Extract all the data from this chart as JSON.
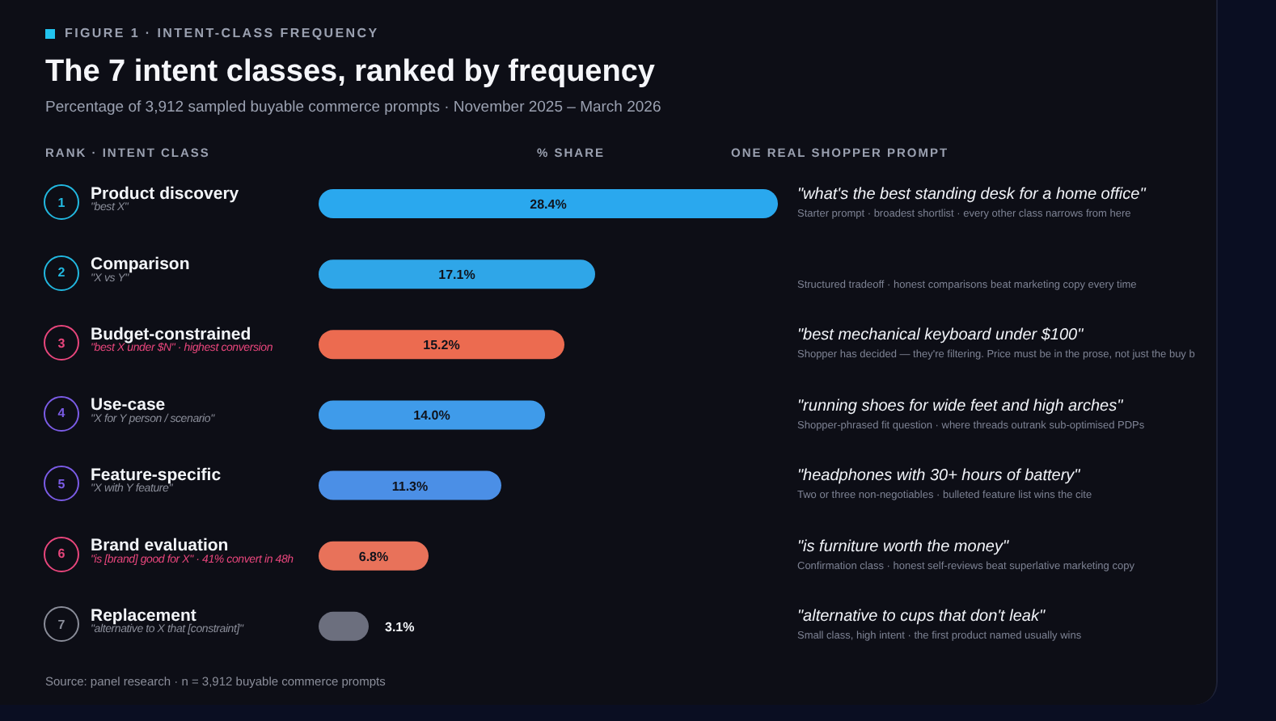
{
  "chart_data": {
    "type": "bar",
    "orientation": "horizontal",
    "title": "The 7 intent classes, ranked by frequency",
    "subtitle": "Percentage of 3,912 sampled buyable commerce prompts · November 2025 – March 2026",
    "categories": [
      "Product discovery",
      "Comparison",
      "Budget-constrained",
      "Use-case",
      "Feature-specific",
      "Brand evaluation",
      "Replacement"
    ],
    "values": [
      28.4,
      17.1,
      15.2,
      14.0,
      11.3,
      6.8,
      3.1
    ],
    "value_labels": [
      "28.4%",
      "17.1%",
      "15.2%",
      "14.0%",
      "11.3%",
      "6.8%",
      "3.1%"
    ],
    "colors": [
      "#2aa8ee",
      "#2fa6e8",
      "#ec6b50",
      "#3f9bea",
      "#4b8fe6",
      "#e8725a",
      "#6c6f7e"
    ],
    "annotations": [
      "FIGURE 1 · INTENT-CLASS FREQUENCY",
      "RANK · INTENT CLASS",
      "% SHARE",
      "ONE REAL SHOPPER PROMPT",
      "1",
      "\"best X\"",
      "\"what's the best standing desk for a home office\"",
      "Starter prompt · broadest shortlist · every other class narrows from here",
      "2",
      "\"X vs Y\"",
      "Structured tradeoff · honest comparisons beat marketing copy every time",
      "3",
      "\"best X under $N\" · highest conversion",
      "\"best mechanical keyboard under $100\"",
      "Shopper has decided — they're filtering. Price must be in the prose, not just the buy b",
      "4",
      "\"X for Y person / scenario\"",
      "\"running shoes for wide feet and high arches\"",
      "Shopper-phrased fit question · where threads outrank sub-optimised PDPs",
      "5",
      "\"X with Y feature\"",
      "\"headphones with 30+ hours of battery\"",
      "Two or three non-negotiables · bulleted feature list wins the cite",
      "6",
      "\"is [brand] good for X\" · 41% convert in 48h",
      "\"is furniture worth the money\"",
      "Confirmation class · honest self-reviews beat superlative marketing copy",
      "7",
      "\"alternative to X that [constraint]\"",
      "\"alternative to cups that don't leak\"",
      "Small class, high intent · the first product named usually wins",
      "Source: panel research · n = 3,912 buyable commerce prompts"
    ]
  }
}
